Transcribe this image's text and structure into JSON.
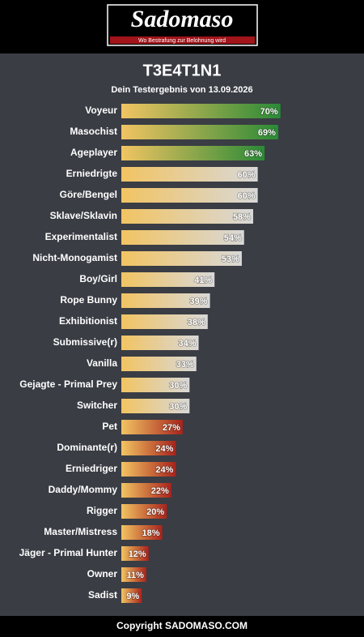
{
  "header": {
    "logo": "Sadomaso",
    "tagline": "Wo Bestrafung zur Belohnung wird"
  },
  "chart_data": {
    "type": "bar",
    "title": "T3E4T1N1",
    "subtitle": "Dein Testergebnis von 13.09.2026",
    "categories": [
      "Voyeur",
      "Masochist",
      "Ageplayer",
      "Erniedrigte",
      "Göre/Bengel",
      "Sklave/Sklavin",
      "Experimentalist",
      "Nicht-Monogamist",
      "Boy/Girl",
      "Rope Bunny",
      "Exhibitionist",
      "Submissive(r)",
      "Vanilla",
      "Gejagte - Primal Prey",
      "Switcher",
      "Pet",
      "Dominante(r)",
      "Erniedriger",
      "Daddy/Mommy",
      "Rigger",
      "Master/Mistress",
      "Jäger - Primal Hunter",
      "Owner",
      "Sadist"
    ],
    "values": [
      70,
      69,
      63,
      60,
      60,
      58,
      54,
      53,
      41,
      39,
      38,
      34,
      33,
      30,
      30,
      27,
      24,
      24,
      22,
      20,
      18,
      12,
      11,
      9
    ],
    "value_labels": [
      "70%",
      "69%",
      "63%",
      "60%",
      "60%",
      "58%",
      "54%",
      "53%",
      "41%",
      "39%",
      "38%",
      "34%",
      "33%",
      "30%",
      "30%",
      "27%",
      "24%",
      "24%",
      "22%",
      "20%",
      "18%",
      "12%",
      "11%",
      "9%"
    ],
    "start_color": "#f2c462",
    "colors": [
      "#2a8a36",
      "#2a8a36",
      "#2a8a36",
      "#d8d8d8",
      "#d8d8d8",
      "#d8d8d8",
      "#d8d8d8",
      "#d8d8d8",
      "#d8d8d8",
      "#d8d8d8",
      "#d8d8d8",
      "#d8d8d8",
      "#d8d8d8",
      "#d8d8d8",
      "#d8d8d8",
      "#a8231c",
      "#a8231c",
      "#a8231c",
      "#a8231c",
      "#a8231c",
      "#a8231c",
      "#a8231c",
      "#a8231c",
      "#a8231c"
    ]
  },
  "footer": "Copyright SADOMASO.COM"
}
